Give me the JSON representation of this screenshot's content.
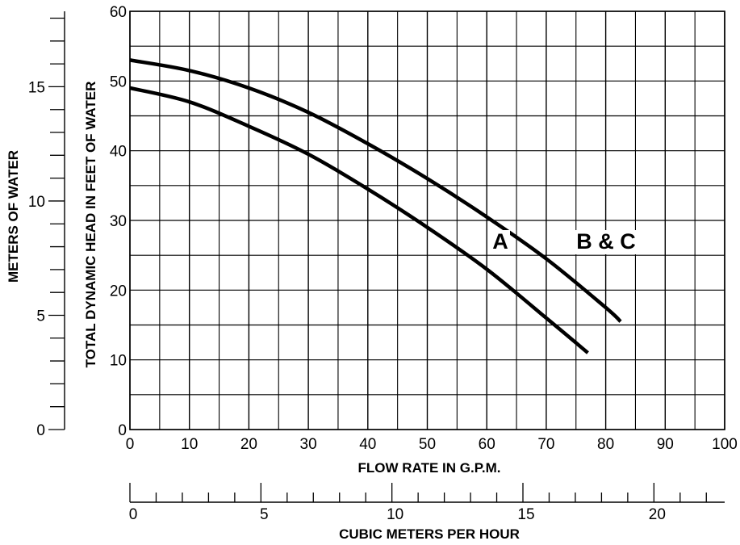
{
  "chart_data": {
    "type": "line",
    "title": "",
    "xlabel": "FLOW RATE IN G.P.M.",
    "ylabel": "TOTAL DYNAMIC HEAD IN FEET OF WATER",
    "xlim": [
      0,
      100
    ],
    "ylim": [
      0,
      60
    ],
    "x_major_ticks": [
      0,
      10,
      20,
      30,
      40,
      50,
      60,
      70,
      80,
      90,
      100
    ],
    "y_major_ticks": [
      0,
      10,
      20,
      30,
      40,
      50,
      60
    ],
    "grid": true,
    "secondary_x_axis": {
      "label": "CUBIC METERS PER HOUR",
      "range": [
        0,
        22.7
      ],
      "major_ticks": [
        0,
        5,
        10,
        15,
        20
      ]
    },
    "secondary_y_axis": {
      "label": "METERS OF WATER",
      "range": [
        0,
        18.3
      ],
      "major_ticks": [
        0,
        5,
        10,
        15
      ]
    },
    "series": [
      {
        "name": "A",
        "x": [
          0,
          10,
          20,
          30,
          40,
          50,
          60,
          70,
          77
        ],
        "y": [
          49,
          47,
          43.5,
          39.5,
          34.5,
          29,
          23,
          16,
          11
        ]
      },
      {
        "name": "B & C",
        "x": [
          0,
          10,
          20,
          30,
          40,
          50,
          60,
          70,
          80,
          82.5
        ],
        "y": [
          53,
          51.5,
          49,
          45.5,
          41,
          36,
          30.5,
          24.5,
          17.5,
          15.5
        ]
      }
    ]
  }
}
